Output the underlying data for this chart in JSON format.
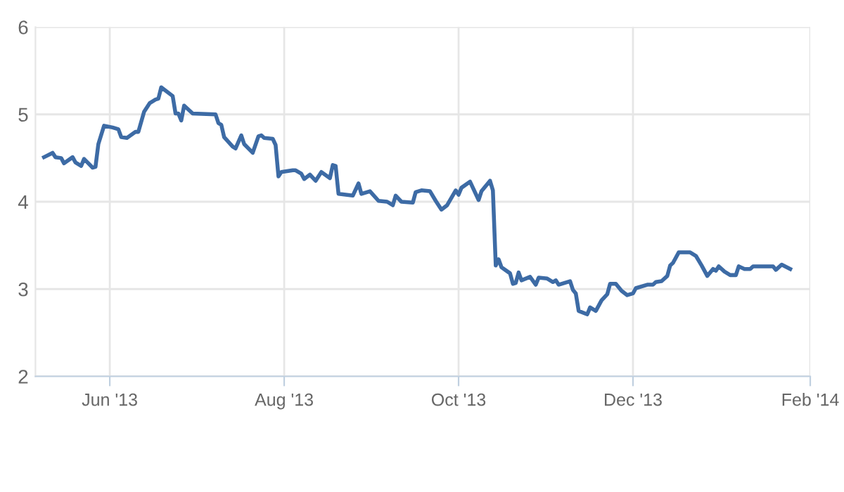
{
  "chart_data": {
    "type": "line",
    "xlim": [
      "2013-05-06",
      "2014-02-01"
    ],
    "xticks": [
      {
        "value": "2013-06-01",
        "label": "Jun '13"
      },
      {
        "value": "2013-08-01",
        "label": "Aug '13"
      },
      {
        "value": "2013-10-01",
        "label": "Oct '13"
      },
      {
        "value": "2013-12-01",
        "label": "Dec '13"
      },
      {
        "value": "2014-02-01",
        "label": "Feb '14"
      }
    ],
    "ylim": [
      2,
      6
    ],
    "yticks": [
      2,
      3,
      4,
      5,
      6
    ],
    "grid": true,
    "marker": "none",
    "line_style": "solid",
    "series": [
      {
        "color": "#3d6ba5",
        "x": [
          "2013-05-09",
          "2013-05-12",
          "2013-05-13",
          "2013-05-15",
          "2013-05-16",
          "2013-05-19",
          "2013-05-20",
          "2013-05-22",
          "2013-05-23",
          "2013-05-26",
          "2013-05-27",
          "2013-05-28",
          "2013-05-30",
          "2013-06-02",
          "2013-06-04",
          "2013-06-05",
          "2013-06-07",
          "2013-06-10",
          "2013-06-11",
          "2013-06-13",
          "2013-06-15",
          "2013-06-17",
          "2013-06-18",
          "2013-06-19",
          "2013-06-23",
          "2013-06-24",
          "2013-06-25",
          "2013-06-26",
          "2013-06-27",
          "2013-06-30",
          "2013-07-08",
          "2013-07-09",
          "2013-07-10",
          "2013-07-11",
          "2013-07-14",
          "2013-07-15",
          "2013-07-17",
          "2013-07-18",
          "2013-07-21",
          "2013-07-23",
          "2013-07-24",
          "2013-07-25",
          "2013-07-28",
          "2013-07-29",
          "2013-07-30",
          "2013-07-31",
          "2013-08-04",
          "2013-08-05",
          "2013-08-07",
          "2013-08-08",
          "2013-08-10",
          "2013-08-12",
          "2013-08-14",
          "2013-08-17",
          "2013-08-18",
          "2013-08-19",
          "2013-08-20",
          "2013-08-25",
          "2013-08-27",
          "2013-08-28",
          "2013-08-31",
          "2013-09-03",
          "2013-09-06",
          "2013-09-08",
          "2013-09-09",
          "2013-09-11",
          "2013-09-15",
          "2013-09-16",
          "2013-09-18",
          "2013-09-21",
          "2013-09-23",
          "2013-09-25",
          "2013-09-27",
          "2013-09-30",
          "2013-10-01",
          "2013-10-02",
          "2013-10-05",
          "2013-10-08",
          "2013-10-09",
          "2013-10-12",
          "2013-10-13",
          "2013-10-14",
          "2013-10-15",
          "2013-10-16",
          "2013-10-19",
          "2013-10-20",
          "2013-10-21",
          "2013-10-22",
          "2013-10-23",
          "2013-10-26",
          "2013-10-28",
          "2013-10-29",
          "2013-11-01",
          "2013-11-03",
          "2013-11-04",
          "2013-11-05",
          "2013-11-09",
          "2013-11-10",
          "2013-11-11",
          "2013-11-12",
          "2013-11-15",
          "2013-11-16",
          "2013-11-18",
          "2013-11-20",
          "2013-11-22",
          "2013-11-23",
          "2013-11-25",
          "2013-11-27",
          "2013-11-29",
          "2013-12-01",
          "2013-12-02",
          "2013-12-06",
          "2013-12-08",
          "2013-12-09",
          "2013-12-11",
          "2013-12-13",
          "2013-12-14",
          "2013-12-15",
          "2013-12-17",
          "2013-12-21",
          "2013-12-23",
          "2013-12-25",
          "2013-12-27",
          "2013-12-29",
          "2013-12-30",
          "2013-12-31",
          "2014-01-02",
          "2014-01-04",
          "2014-01-06",
          "2014-01-07",
          "2014-01-09",
          "2014-01-11",
          "2014-01-12",
          "2014-01-19",
          "2014-01-20",
          "2014-01-22",
          "2014-01-25"
        ],
        "values": [
          4.51,
          4.56,
          4.51,
          4.5,
          4.44,
          4.51,
          4.45,
          4.41,
          4.49,
          4.39,
          4.4,
          4.66,
          4.87,
          4.85,
          4.83,
          4.74,
          4.73,
          4.8,
          4.8,
          5.03,
          5.13,
          5.17,
          5.18,
          5.31,
          5.21,
          5.01,
          5.01,
          4.93,
          5.1,
          5.01,
          5.0,
          4.9,
          4.88,
          4.74,
          4.63,
          4.61,
          4.76,
          4.66,
          4.56,
          4.75,
          4.76,
          4.73,
          4.72,
          4.65,
          4.29,
          4.34,
          4.36,
          4.36,
          4.32,
          4.26,
          4.31,
          4.24,
          4.34,
          4.27,
          4.42,
          4.41,
          4.09,
          4.07,
          4.21,
          4.09,
          4.12,
          4.01,
          4.0,
          3.96,
          4.07,
          4.0,
          3.99,
          4.11,
          4.13,
          4.12,
          4.01,
          3.91,
          3.96,
          4.13,
          4.08,
          4.16,
          4.23,
          4.02,
          4.12,
          4.24,
          4.13,
          3.27,
          3.34,
          3.25,
          3.18,
          3.06,
          3.07,
          3.19,
          3.1,
          3.14,
          3.05,
          3.13,
          3.12,
          3.08,
          3.1,
          3.05,
          3.09,
          2.99,
          2.95,
          2.75,
          2.71,
          2.79,
          2.75,
          2.87,
          2.94,
          3.06,
          3.06,
          2.98,
          2.93,
          2.95,
          3.01,
          3.05,
          3.05,
          3.08,
          3.09,
          3.15,
          3.27,
          3.3,
          3.42,
          3.42,
          3.38,
          3.27,
          3.15,
          3.23,
          3.21,
          3.26,
          3.2,
          3.16,
          3.16,
          3.26,
          3.23,
          3.23,
          3.26,
          3.26,
          3.22,
          3.28,
          3.23
        ]
      }
    ]
  }
}
